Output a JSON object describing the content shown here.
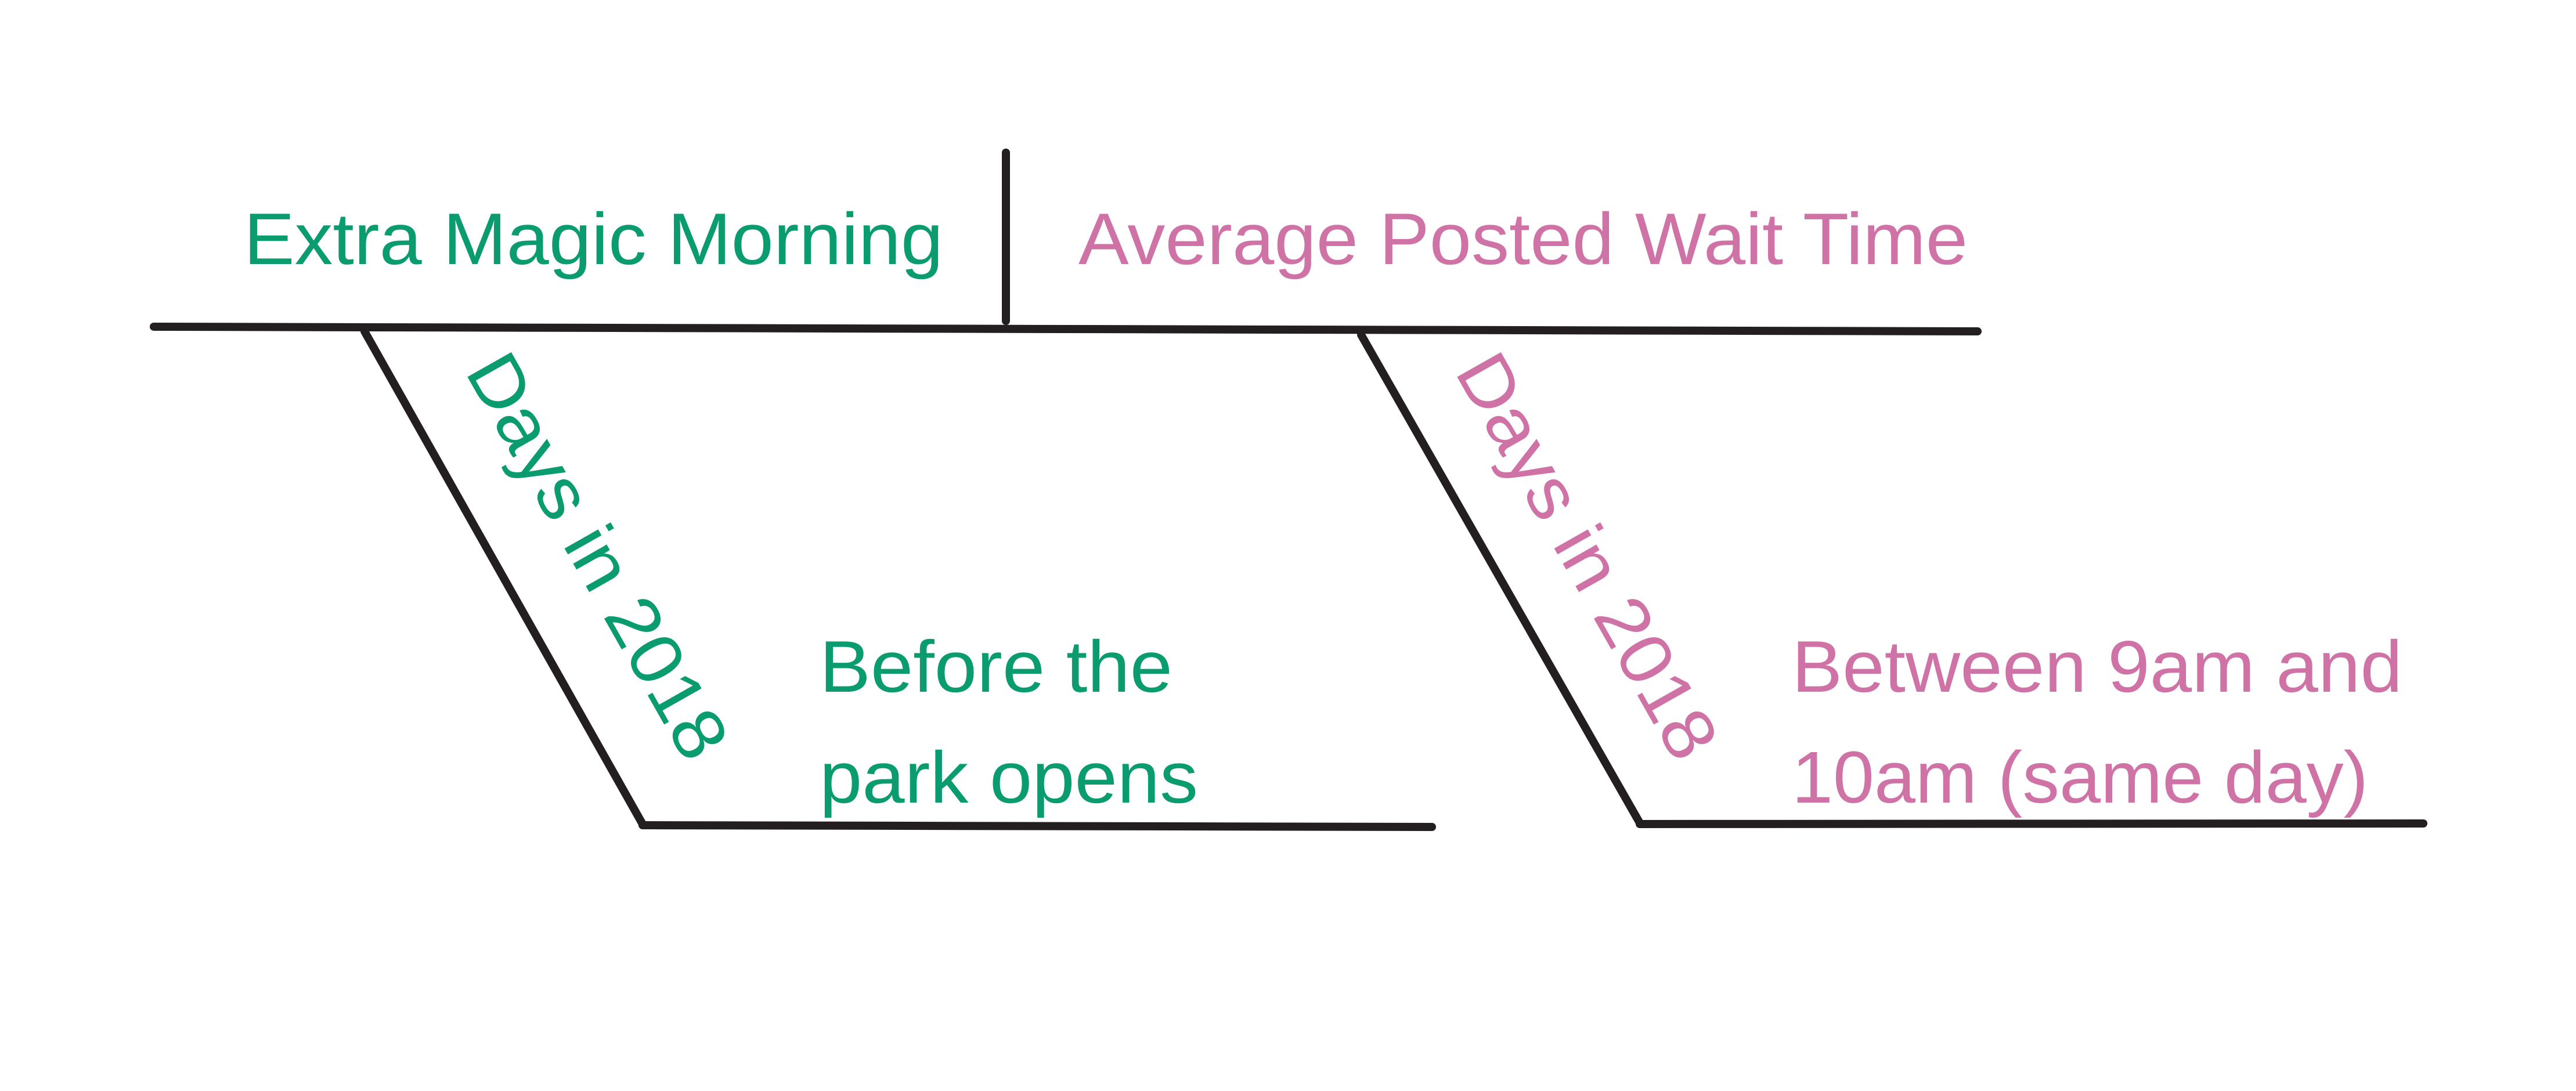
{
  "diagram": {
    "type": "sentence-diagram",
    "colors": {
      "green": "#0a9b6e",
      "pink": "#cf73a7",
      "line": "#231f20"
    },
    "subject": "Extra Magic Morning",
    "predicate": "Average Posted Wait Time",
    "left_modifier": {
      "label": "Days in 2018",
      "object_line1": "Before the",
      "object_line2": "park opens"
    },
    "right_modifier": {
      "label": "Days in 2018",
      "object_line1": "Between 9am and",
      "object_line2": "10am (same day)"
    }
  }
}
